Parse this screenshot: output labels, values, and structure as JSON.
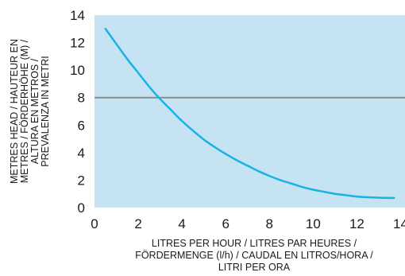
{
  "chart_data": {
    "type": "line",
    "xlabel_lines": [
      "LITRES PER HOUR / LITRES PAR HEURES /",
      "FÖRDERMENGE (l/h) / CAUDAL EN LITROS/HORA /",
      "LITRI PER ORA"
    ],
    "ylabel_lines": [
      "METRES HEAD / HAUTEUR EN",
      "METRES / FÖRDERHÖHE (M) /",
      "ALTURA EN METROS /",
      "PREVALENZA IN METRI"
    ],
    "xlim": [
      0,
      14.2
    ],
    "ylim": [
      0,
      14
    ],
    "x_ticks": [
      0,
      2,
      4,
      6,
      8,
      10,
      12,
      14
    ],
    "y_ticks": [
      0,
      2,
      4,
      6,
      8,
      10,
      12,
      14
    ],
    "grid": false,
    "background_color": "#c6e3f4",
    "series": [
      {
        "color": "#19b2e3",
        "x": [
          0.5,
          1,
          1.5,
          2,
          2.5,
          3,
          3.5,
          4,
          4.5,
          5,
          5.5,
          6,
          6.5,
          7,
          7.5,
          8,
          8.5,
          9,
          9.5,
          10,
          10.5,
          11,
          11.5,
          12,
          12.5,
          13,
          13.5,
          13.7
        ],
        "y": [
          13.0,
          11.9,
          10.8,
          9.8,
          8.8,
          7.9,
          7.1,
          6.3,
          5.6,
          4.95,
          4.4,
          3.9,
          3.45,
          3.05,
          2.65,
          2.3,
          2.0,
          1.75,
          1.5,
          1.3,
          1.15,
          1.0,
          0.9,
          0.8,
          0.75,
          0.72,
          0.7,
          0.7
        ]
      }
    ],
    "reference_lines": [
      {
        "axis": "y",
        "value": 8,
        "color": "#8c8c8c"
      }
    ]
  }
}
